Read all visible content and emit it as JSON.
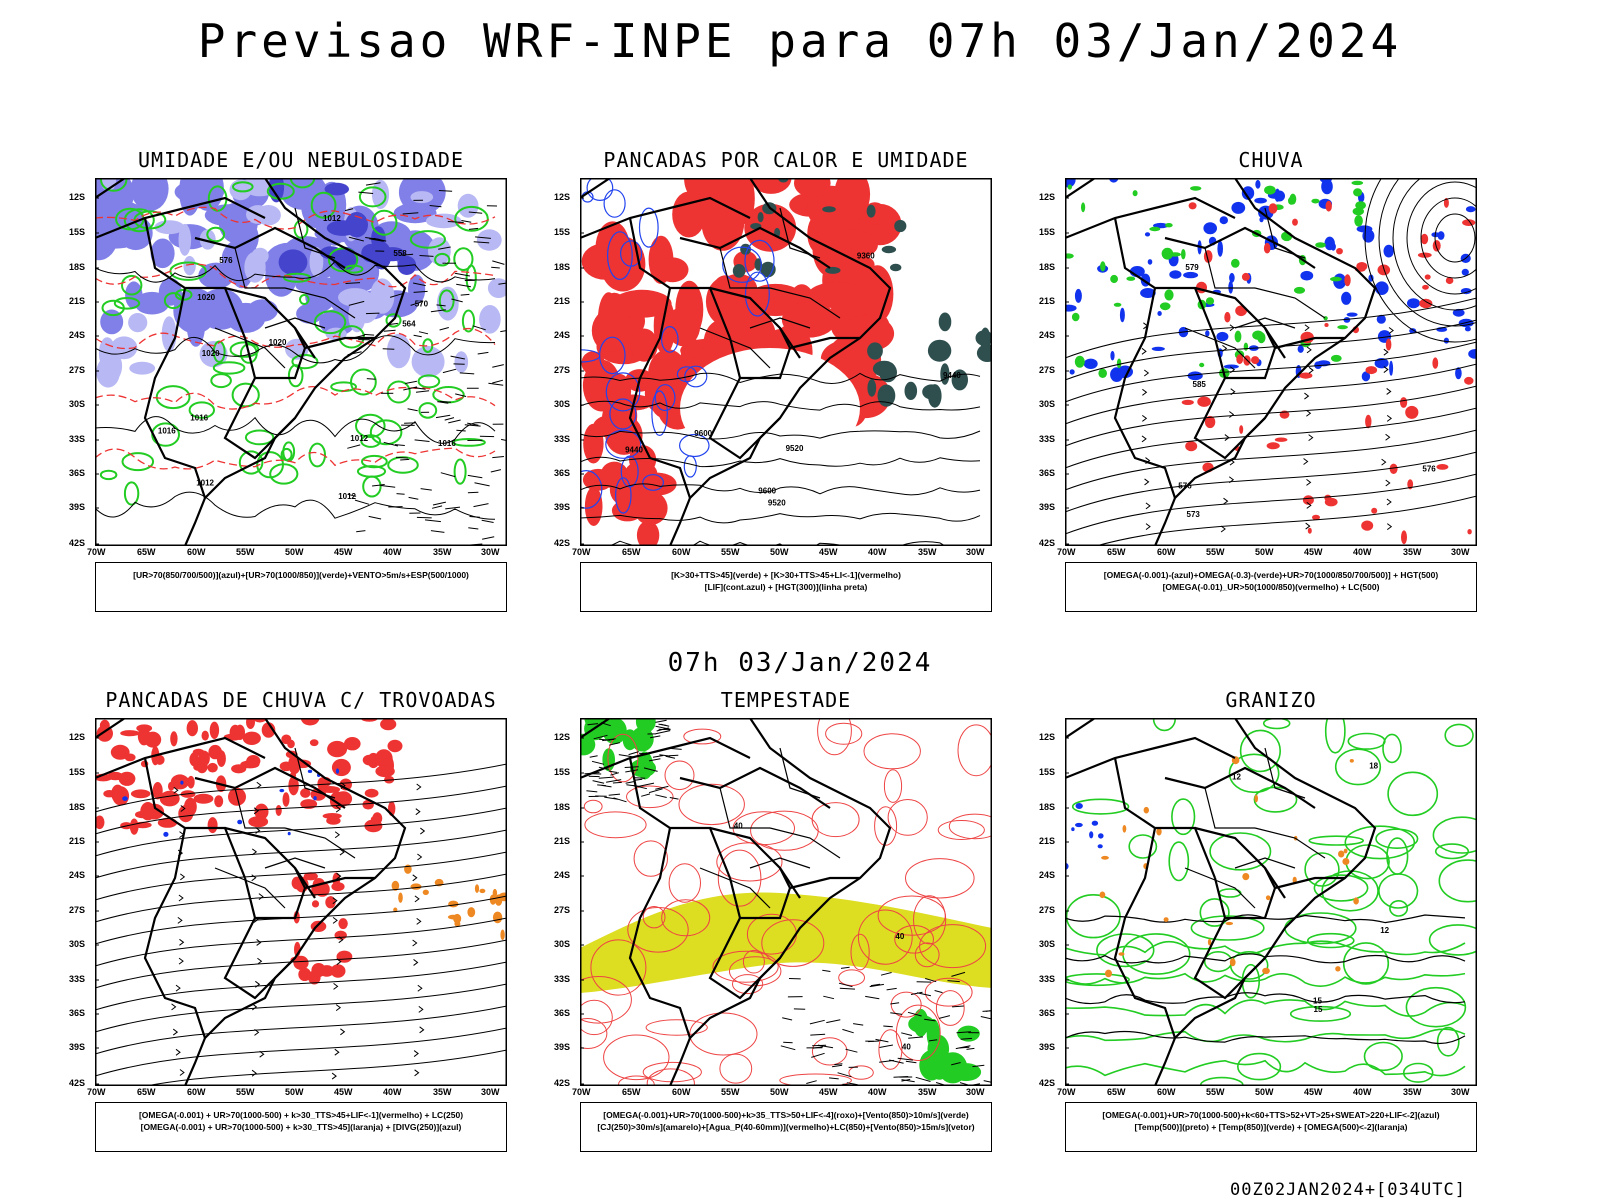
{
  "main_title": "Previsao WRF-INPE  para 07h 03/Jan/2024",
  "mid_title": "07h 03/Jan/2024",
  "run_label": "00Z02JAN2024+[034UTC]",
  "lat_ticks": [
    "12S",
    "15S",
    "18S",
    "21S",
    "24S",
    "27S",
    "30S",
    "33S",
    "36S",
    "39S",
    "42S"
  ],
  "lon_ticks": [
    "70W",
    "65W",
    "60W",
    "55W",
    "50W",
    "45W",
    "40W",
    "35W",
    "30W"
  ],
  "panels": [
    {
      "title": "UMIDADE E/OU NEBULOSIDADE",
      "legend": [
        "[UR>70(850/700/500)](azul)+[UR>70(1000/850)](verde)+VENTO>5m/s+ESP(500/1000)"
      ],
      "contour_labels": [
        "1012",
        "1012",
        "1016",
        "1020",
        "1012",
        "1016",
        "1020",
        "1012",
        "1020",
        "1016",
        "570",
        "576",
        "564",
        "558"
      ]
    },
    {
      "title": "PANCADAS POR CALOR E UMIDADE",
      "legend": [
        "[K>30+TTS>45](verde) + [K>30+TTS>45+LI<-1](vermelho)",
        "[LIF](cont.azul) + [HGT(300)](linha preta)"
      ],
      "contour_labels": [
        "9600",
        "9520",
        "9440",
        "9360",
        "9600",
        "9520",
        "9440"
      ]
    },
    {
      "title": "CHUVA",
      "legend": [
        "[OMEGA(-0.001)-(azul)+OMEGA(-0.3)-(verde)+UR>70(1000/850/700/500)] + HGT(500)",
        "[OMEGA(-0.01)_UR>50(1000/850)(vermelho) + LC(500)"
      ],
      "contour_labels": [
        "585",
        "579",
        "576",
        "573",
        "576"
      ]
    },
    {
      "title": "PANCADAS DE CHUVA C/ TROVOADAS",
      "legend": [
        "[OMEGA(-0.001) + UR>70(1000-500) + k>30_TTS>45+LIF<-1](vermelho) + LC(250)",
        "[OMEGA(-0.001) + UR>70(1000-500) + k>30_TTS>45](laranja) + [DIVG(250)](azul)"
      ],
      "contour_labels": []
    },
    {
      "title": "TEMPESTADE",
      "legend": [
        "[OMEGA(-0.001)+UR>70(1000-500)+k>35_TTS>50+LIF<-4](roxo)+[Vento(850)>10m/s](verde)",
        "[CJ(250)>30m/s](amarelo)+[Agua_P(40-60mm)](vermelho)+LC(850)+[Vento(850)>15m/s](vetor)"
      ],
      "contour_labels": [
        "40",
        "40",
        "40"
      ]
    },
    {
      "title": "GRANIZO",
      "legend": [
        "[OMEGA(-0.001)+UR>70(1000-500)+k<60+TTS>52+VT>25+SWEAT>220+LIF<-2](azul)",
        "[Temp(500)](preto) + [Temp(850)](verde) + [OMEGA(500)<-2](laranja)"
      ],
      "contour_labels": [
        "12",
        "15",
        "18",
        "12",
        "15"
      ]
    }
  ],
  "colors": {
    "blue_humidity": "#8080e8",
    "green": "#22cc22",
    "red": "#ee3333",
    "dark_teal": "#2f4f4f",
    "yellow": "#dddd22",
    "orange": "#ee8822",
    "blue": "#1133ee"
  }
}
